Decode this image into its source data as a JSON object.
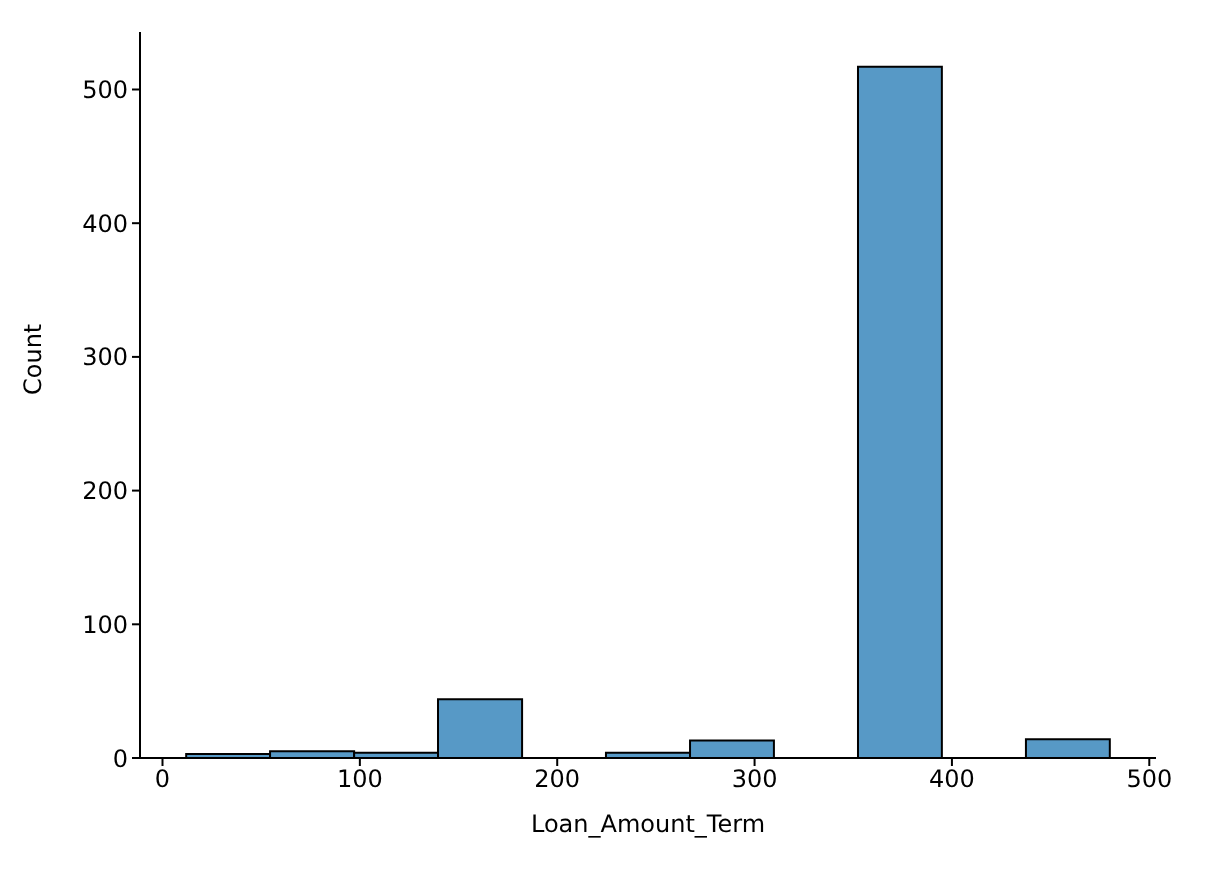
{
  "chart_data": {
    "type": "histogram",
    "xlabel": "Loan_Amount_Term",
    "ylabel": "Count",
    "bins": [
      12,
      54.5,
      97.1,
      139.6,
      182.2,
      224.7,
      267.3,
      309.8,
      352.4,
      394.9,
      437.5,
      480
    ],
    "values": [
      3,
      5,
      4,
      44,
      0,
      4,
      13,
      0,
      517,
      0,
      14
    ],
    "color": "#5799c6",
    "xlim": [
      -11.4,
      503.4
    ],
    "xticks": [
      0,
      100,
      200,
      300,
      400,
      500
    ],
    "ylim": [
      0,
      543
    ],
    "yticks": [
      0,
      100,
      200,
      300,
      400,
      500
    ],
    "grid": false
  }
}
